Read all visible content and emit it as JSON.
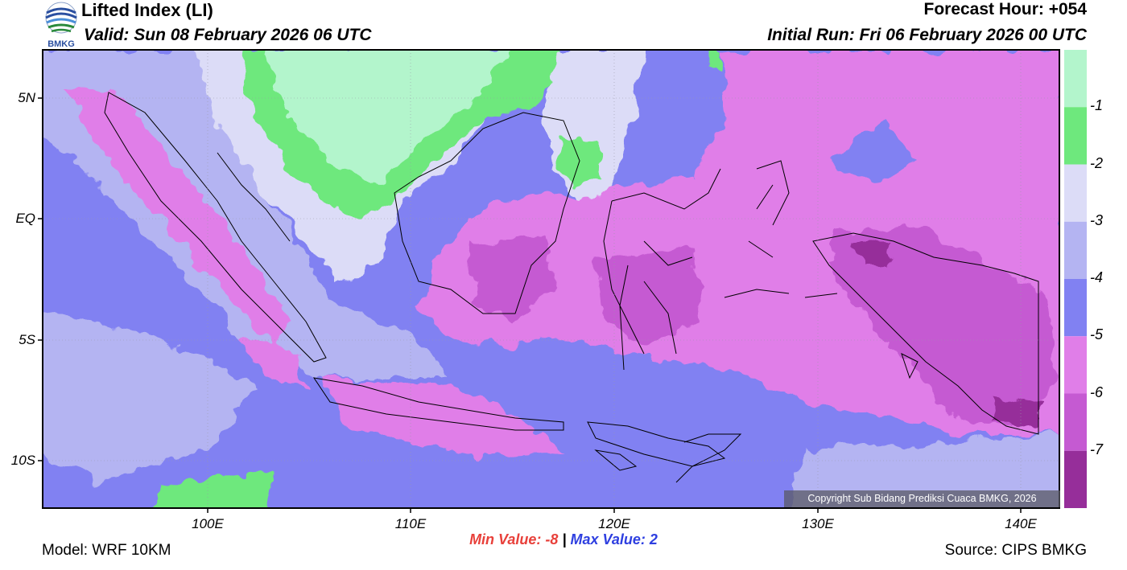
{
  "header": {
    "title": "Lifted Index (LI)",
    "valid": "Valid: Sun 08 February 2026 06 UTC",
    "forecast_hour": "Forecast Hour: +054",
    "initial_run": "Initial Run: Fri 06 February 2026 00 UTC",
    "logo_text": "BMKG"
  },
  "legend": {
    "levels": [
      {
        "label": "-1",
        "color": "#b3f5cc"
      },
      {
        "label": "-2",
        "color": "#6ee87d"
      },
      {
        "label": "-3",
        "color": "#dcdcf7"
      },
      {
        "label": "-4",
        "color": "#b4b4f2"
      },
      {
        "label": "-5",
        "color": "#8181f2"
      },
      {
        "label": "-6",
        "color": "#e07ee8"
      },
      {
        "label": "-7",
        "color": "#c55ad2"
      },
      {
        "label": "",
        "color": "#962e9a"
      }
    ]
  },
  "axes": {
    "x_ticks": [
      "100E",
      "110E",
      "120E",
      "130E",
      "140E"
    ],
    "y_ticks": [
      "5N",
      "EQ",
      "5S",
      "10S"
    ]
  },
  "stats": {
    "min_label": "Min Value:",
    "min_value": "-8",
    "separator": "|",
    "max_label": "Max Value:",
    "max_value": "2"
  },
  "footer": {
    "model": "Model: WRF 10KM",
    "source": "Source: CIPS BMKG",
    "copyright": "Copyright Sub Bidang Prediksi Cuaca BMKG, 2026"
  }
}
